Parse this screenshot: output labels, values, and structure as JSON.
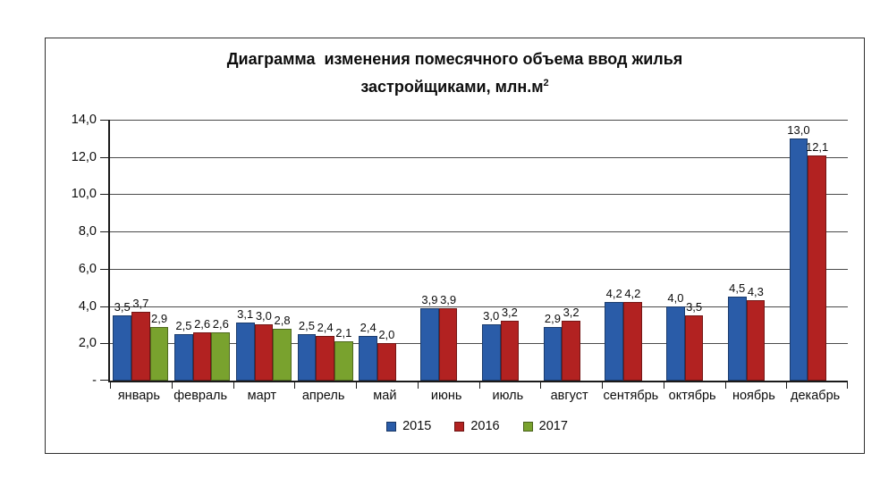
{
  "title": {
    "line1": "Диаграмма  изменения помесячного объема ввод жилья",
    "line2_base": "застройщиками, млн.м",
    "line2_sup": "2"
  },
  "chart_data": {
    "type": "bar",
    "title": "Диаграмма изменения помесячного объема ввод жилья застройщиками, млн.м2",
    "categories": [
      "январь",
      "февраль",
      "март",
      "апрель",
      "май",
      "июнь",
      "июль",
      "август",
      "сентябрь",
      "октябрь",
      "ноябрь",
      "декабрь"
    ],
    "series": [
      {
        "name": "2015",
        "color": "#2A5CA8",
        "values": [
          3.5,
          2.5,
          3.1,
          2.5,
          2.4,
          3.9,
          3.0,
          2.9,
          4.2,
          4.0,
          4.5,
          13.0
        ]
      },
      {
        "name": "2016",
        "color": "#B22221",
        "values": [
          3.7,
          2.6,
          3.0,
          2.4,
          2.0,
          3.9,
          3.2,
          3.2,
          4.2,
          3.5,
          4.3,
          12.1
        ]
      },
      {
        "name": "2017",
        "color": "#79A22E",
        "values": [
          2.9,
          2.6,
          2.8,
          2.1,
          null,
          null,
          null,
          null,
          null,
          null,
          null,
          null
        ]
      }
    ],
    "ylim": [
      0,
      14
    ],
    "ytick_step": 2,
    "ytick_labels": [
      "-",
      "2,0",
      "4,0",
      "6,0",
      "8,0",
      "10,0",
      "12,0",
      "14,0"
    ],
    "decimal_separator": ",",
    "grid": true,
    "data_labels": true,
    "legend_position": "bottom",
    "xlabel": "",
    "ylabel": ""
  }
}
